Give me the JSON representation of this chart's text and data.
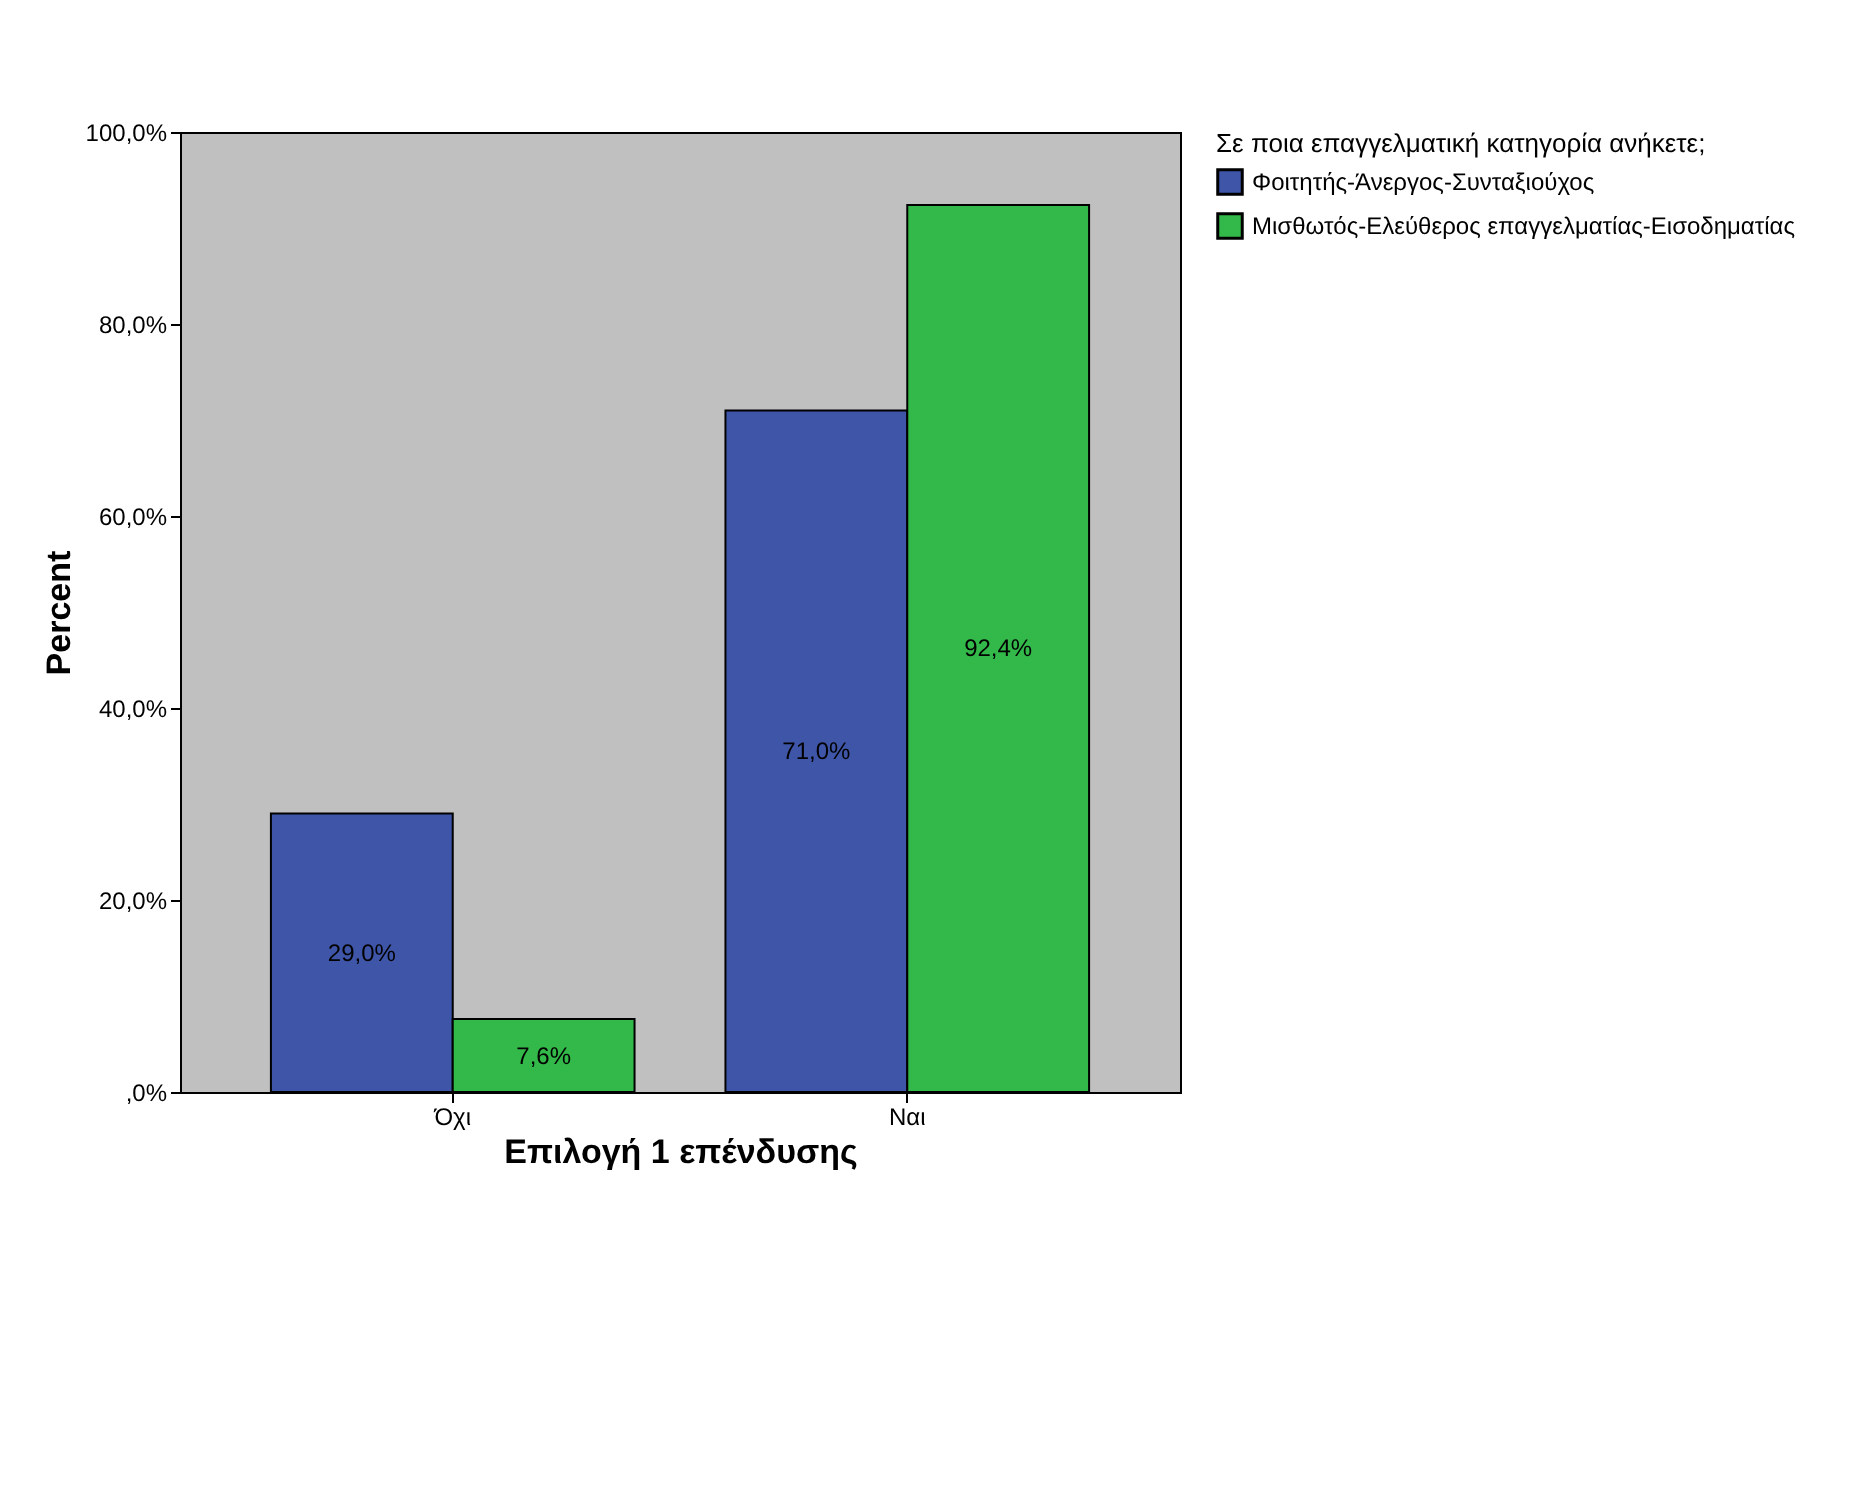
{
  "chart_data": {
    "type": "bar",
    "xlabel": "Επιλογή 1 επένδυσης",
    "ylabel": "Percent",
    "legend_title": "Σε ποια επαγγελματική κατηγορία ανήκετε;",
    "categories": [
      "Όχι",
      "Ναι"
    ],
    "series": [
      {
        "name": "Φοιτητής-Άνεργος-Συνταξιούχος",
        "color": "#3f56a8",
        "values": [
          29.0,
          71.0
        ],
        "value_labels": [
          "29,0%",
          "71,0%"
        ]
      },
      {
        "name": "Μισθωτός-Ελεύθερος επαγγελματίας-Εισοδηματίας",
        "color": "#33b94a",
        "values": [
          7.6,
          92.4
        ],
        "value_labels": [
          "7,6%",
          "92,4%"
        ]
      }
    ],
    "ylim": [
      0,
      100
    ],
    "yticks": [
      {
        "value": 0,
        "label": ",0%"
      },
      {
        "value": 20,
        "label": "20,0%"
      },
      {
        "value": 40,
        "label": "40,0%"
      },
      {
        "value": 60,
        "label": "60,0%"
      },
      {
        "value": 80,
        "label": "80,0%"
      },
      {
        "value": 100,
        "label": "100,0%"
      }
    ],
    "grid": false,
    "legend": "top right"
  }
}
